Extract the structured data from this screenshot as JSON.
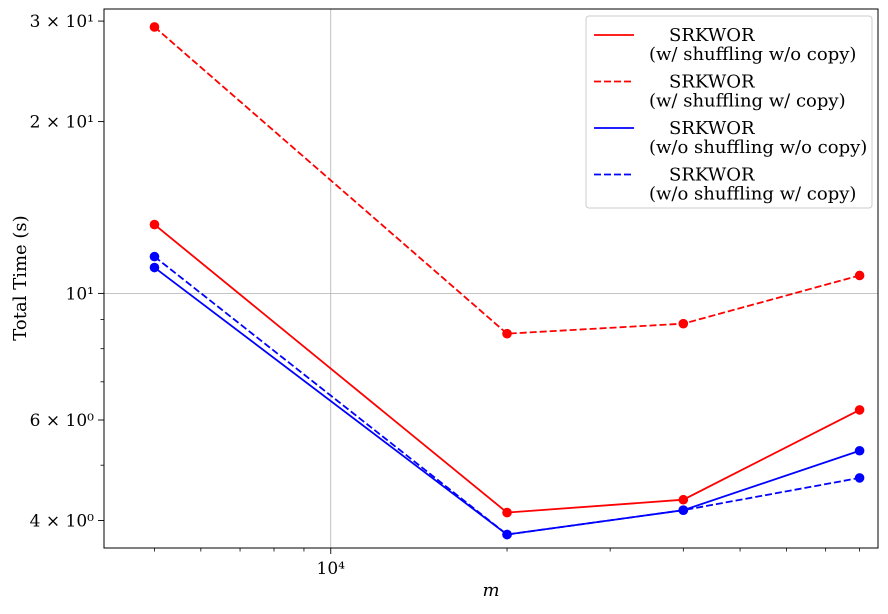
{
  "chart_data": {
    "type": "line",
    "title": "",
    "xlabel": "m",
    "ylabel": "Total Time (s)",
    "xscale": "log",
    "yscale": "log",
    "xlim": [
      4100,
      86000
    ],
    "ylim": [
      3.58,
      31.5
    ],
    "x": [
      5000,
      20000,
      40000,
      80000
    ],
    "xticks": [
      {
        "value": 10000,
        "label": "10⁴"
      }
    ],
    "yticks": [
      {
        "value": 30,
        "label": "3 × 10¹"
      },
      {
        "value": 20,
        "label": "2 × 10¹"
      },
      {
        "value": 10,
        "label": "10¹"
      },
      {
        "value": 6,
        "label": "6 × 10⁰"
      },
      {
        "value": 4,
        "label": "4 × 10⁰"
      }
    ],
    "grid": true,
    "legend_position": "top-right",
    "series": [
      {
        "name": "SRKWOR\n(w/ shuffling w/o copy)",
        "color": "#ff0000",
        "dash": "solid",
        "values": [
          13.2,
          4.13,
          4.35,
          6.25
        ]
      },
      {
        "name": "SRKWOR\n(w/ shuffling w/ copy)",
        "color": "#ff0000",
        "dash": "dashed",
        "values": [
          29.3,
          8.5,
          8.85,
          10.75
        ]
      },
      {
        "name": "SRKWOR\n(w/o shuffling w/o copy)",
        "color": "#0000ff",
        "dash": "solid",
        "values": [
          11.1,
          3.78,
          4.17,
          5.3
        ]
      },
      {
        "name": "SRKWOR\n(w/o shuffling w/ copy)",
        "color": "#0000ff",
        "dash": "dashed",
        "values": [
          11.6,
          3.78,
          4.17,
          4.75
        ]
      }
    ]
  }
}
